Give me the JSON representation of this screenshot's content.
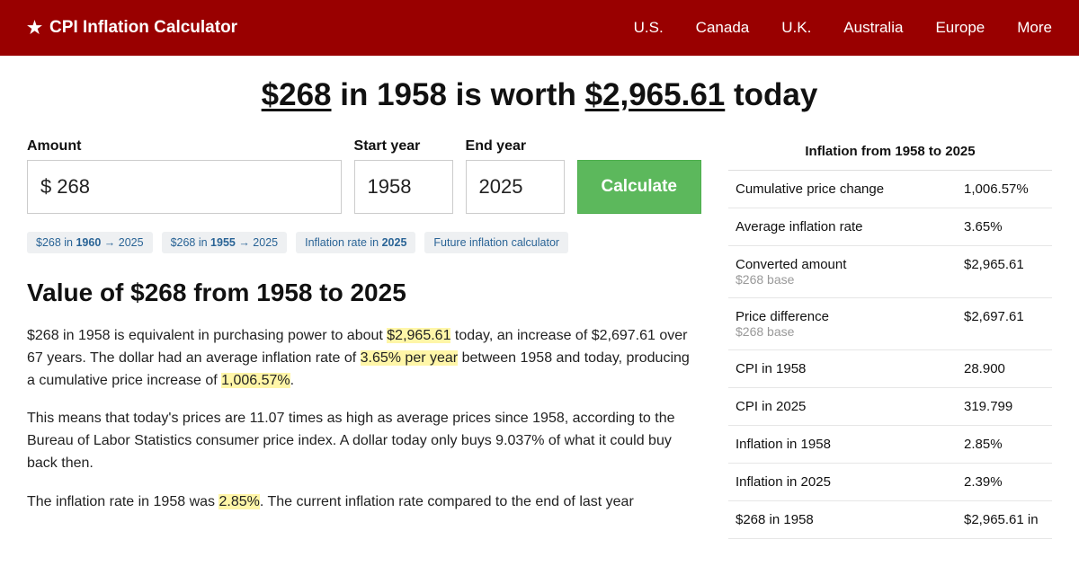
{
  "colors": {
    "header_bg": "#990000",
    "btn_bg": "#5cb85c",
    "highlight_bg": "#fff6a8",
    "chip_bg": "#eef0f2",
    "chip_text": "#2a6496"
  },
  "header": {
    "brand": "CPI Inflation Calculator",
    "nav": [
      "U.S.",
      "Canada",
      "U.K.",
      "Australia",
      "Europe",
      "More"
    ]
  },
  "title": {
    "amount": "$268",
    "mid1": " in 1958 is worth ",
    "result": "$2,965.61",
    "mid2": " today"
  },
  "form": {
    "amount_label": "Amount",
    "amount_prefix": "$",
    "amount_value": "268",
    "start_label": "Start year",
    "start_value": "1958",
    "end_label": "End year",
    "end_value": "2025",
    "button": "Calculate"
  },
  "chips": [
    {
      "pre": "$268 in ",
      "bold": "1960",
      "post": " → 2025"
    },
    {
      "pre": "$268 in ",
      "bold": "1955",
      "post": " → 2025"
    },
    {
      "pre": "Inflation rate in ",
      "bold": "2025",
      "post": ""
    },
    {
      "pre": "Future inflation calculator",
      "bold": "",
      "post": ""
    }
  ],
  "section_heading": "Value of $268 from 1958 to 2025",
  "para1": {
    "a": "$268 in 1958 is equivalent in purchasing power to about ",
    "h1": "$2,965.61",
    "b": " today, an increase of $2,697.61 over 67 years. The dollar had an average inflation rate of ",
    "h2": "3.65% per year",
    "c": " between 1958 and today, producing a cumulative price increase of ",
    "h3": "1,006.57%",
    "d": "."
  },
  "para2": "This means that today's prices are 11.07 times as high as average prices since 1958, according to the Bureau of Labor Statistics consumer price index. A dollar today only buys 9.037% of what it could buy back then.",
  "para3": {
    "a": "The inflation rate in 1958 was ",
    "h1": "2.85%",
    "b": ". The current inflation rate compared to the end of last year"
  },
  "sidebar": {
    "title": "Inflation from 1958 to 2025",
    "rows": [
      {
        "label": "Cumulative price change",
        "sub": "",
        "value": "1,006.57%"
      },
      {
        "label": "Average inflation rate",
        "sub": "",
        "value": "3.65%"
      },
      {
        "label": "Converted amount",
        "sub": "$268 base",
        "value": "$2,965.61"
      },
      {
        "label": "Price difference",
        "sub": "$268 base",
        "value": "$2,697.61"
      },
      {
        "label": "CPI in 1958",
        "sub": "",
        "value": "28.900"
      },
      {
        "label": "CPI in 2025",
        "sub": "",
        "value": "319.799"
      },
      {
        "label": "Inflation in 1958",
        "sub": "",
        "value": "2.85%"
      },
      {
        "label": "Inflation in 2025",
        "sub": "",
        "value": "2.39%"
      },
      {
        "label": "$268 in 1958",
        "sub": "",
        "value": "$2,965.61 in"
      }
    ]
  }
}
